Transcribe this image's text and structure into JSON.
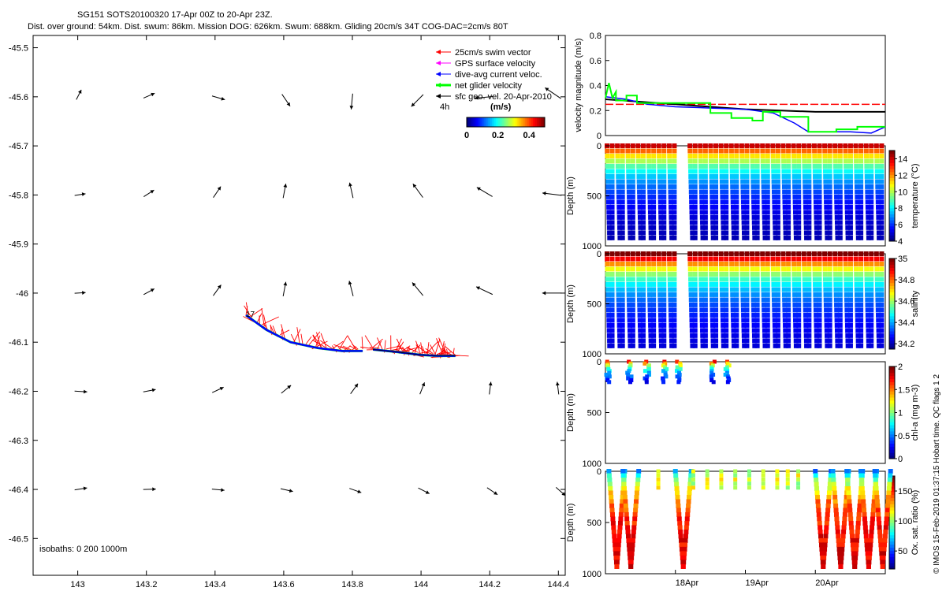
{
  "header": {
    "line1": "SG151 SOTS20100320 17-Apr 00Z to 20-Apr 23Z.",
    "line2": "Dist. over ground: 54km. Dist. swum: 86km. Mission DOG: 626km. Swum: 688km. Gliding 20cm/s 34T COG-DAC=2cm/s 80T"
  },
  "footer_vertical": "© IMOS 15-Feb-2019 01:37:15 Hobart time. QC flags 1  2",
  "map": {
    "isobaths_label": "isobaths: 0    200  1000m",
    "scale_label": "4h",
    "colorbar": {
      "title": "(m/s)",
      "ticks": [
        "0",
        "0.2",
        "0.4"
      ],
      "range": [
        0,
        0.5
      ]
    },
    "legend": [
      {
        "label": "25cm/s swim vector",
        "color": "#ff0000"
      },
      {
        "label": "GPS surface velocity",
        "color": "#ff00ff"
      },
      {
        "label": "dive-avg current veloc.",
        "color": "#0000ff"
      },
      {
        "label": "net glider velocity",
        "color": "#00ff00"
      },
      {
        "label": "sfc geo. vel. 20-Apr-2010",
        "color": "#000000"
      }
    ],
    "annotation": "17"
  },
  "chart_data": [
    {
      "type": "scatter",
      "name": "track map",
      "xlim": [
        142.87,
        144.42
      ],
      "ylim": [
        -46.575,
        -45.475
      ],
      "x_ticks": [
        143,
        143.2,
        143.4,
        143.6,
        143.8,
        144,
        144.2,
        144.4
      ],
      "x_tick_labels": [
        "143",
        "143.2",
        "143.4",
        "143.6",
        "143.8",
        "144",
        "144.2",
        "144.4"
      ],
      "y_ticks": [
        -45.5,
        -45.6,
        -45.7,
        -45.8,
        -45.9,
        -46,
        -46.1,
        -46.2,
        -46.3,
        -46.4,
        -46.5
      ],
      "y_tick_labels": [
        "-45.5",
        "-45.6",
        "-45.7",
        "-45.8",
        "-45.9",
        "-46",
        "-46.1",
        "-46.2",
        "-46.3",
        "-46.4",
        "-46.5"
      ],
      "track_lon": [
        143.49,
        143.55,
        143.62,
        143.7,
        143.77,
        143.83
      ],
      "track_lat": [
        -46.045,
        -46.075,
        -46.1,
        -46.112,
        -46.118,
        -46.118
      ],
      "track2_lon": [
        143.86,
        143.93,
        144.0,
        144.05,
        144.1
      ],
      "track2_lat": [
        -46.115,
        -46.12,
        -46.126,
        -46.128,
        -46.128
      ],
      "geo_vector_lons": [
        143.0,
        143.2,
        143.4,
        143.6,
        143.8,
        144.0,
        144.2,
        144.4
      ],
      "geo_vector_lats": [
        -45.6,
        -45.8,
        -46.0,
        -46.2,
        -46.4
      ]
    },
    {
      "type": "line",
      "name": "velocity",
      "ylabel": "velocity magnitude (m/s)",
      "xlim": [
        17.0,
        21.0
      ],
      "ylim": [
        0,
        0.8
      ],
      "y_ticks": [
        0,
        0.2,
        0.4,
        0.6,
        0.8
      ],
      "y_tick_labels": [
        "0",
        "0.2",
        "0.4",
        "0.6",
        "0.8"
      ],
      "series": [
        {
          "color": "#ff0000",
          "x": [
            17.0,
            21.0
          ],
          "y": [
            0.25,
            0.25
          ]
        },
        {
          "color": "#000000",
          "x": [
            17.0,
            17.5,
            18.0,
            18.5,
            19.0,
            19.5,
            20.0,
            20.5,
            21.0
          ],
          "y": [
            0.29,
            0.27,
            0.25,
            0.23,
            0.21,
            0.2,
            0.19,
            0.19,
            0.19
          ]
        },
        {
          "color": "#0000ff",
          "x": [
            17.0,
            17.3,
            17.6,
            18.0,
            18.5,
            19.0,
            19.4,
            19.7,
            19.9,
            20.2,
            20.5,
            20.8,
            21.0
          ],
          "y": [
            0.31,
            0.29,
            0.25,
            0.23,
            0.22,
            0.21,
            0.18,
            0.1,
            0.03,
            0.03,
            0.03,
            0.02,
            0.07
          ]
        },
        {
          "color": "#00ff00",
          "x": [
            17.0,
            17.05,
            17.1,
            17.15,
            17.15,
            17.3,
            17.3,
            17.45,
            17.45,
            18.5,
            18.5,
            18.8,
            18.8,
            19.1,
            19.1,
            19.25,
            19.25,
            19.5,
            19.5,
            19.9,
            19.9,
            20.3,
            20.3,
            20.6,
            20.6,
            21.0
          ],
          "y": [
            0.3,
            0.42,
            0.3,
            0.35,
            0.28,
            0.28,
            0.32,
            0.32,
            0.26,
            0.26,
            0.18,
            0.18,
            0.14,
            0.14,
            0.12,
            0.12,
            0.19,
            0.19,
            0.15,
            0.15,
            0.03,
            0.03,
            0.05,
            0.05,
            0.07,
            0.07
          ]
        }
      ]
    },
    {
      "type": "heatmap",
      "name": "temperature",
      "ylabel": "Depth (m)",
      "clabel": "temperature (°C)",
      "ylim": [
        0,
        1000
      ],
      "y_tick_labels": [
        "0",
        "500",
        "1000"
      ],
      "clim": [
        4,
        15
      ],
      "c_ticks": [
        "4",
        "6",
        "8",
        "10",
        "12",
        "14"
      ],
      "c_tick_values": [
        4,
        6,
        8,
        10,
        12,
        14
      ],
      "profile_model": "surface-warm",
      "yo_count": 27,
      "dive_depth": 920,
      "gap_days": [
        [
          18.0,
          18.15
        ]
      ]
    },
    {
      "type": "heatmap",
      "name": "salinity",
      "ylabel": "Depth (m)",
      "clabel": "salinity",
      "ylim": [
        0,
        1000
      ],
      "y_tick_labels": [
        "0",
        "500",
        "1000"
      ],
      "clim": [
        34.15,
        35.0
      ],
      "c_ticks": [
        "34.2",
        "34.4",
        "34.6",
        "34.8",
        "35"
      ],
      "c_tick_values": [
        34.2,
        34.4,
        34.6,
        34.8,
        35.0
      ],
      "profile_model": "surface-salty",
      "yo_count": 27,
      "dive_depth": 920,
      "gap_days": [
        [
          18.0,
          18.15
        ]
      ]
    },
    {
      "type": "heatmap",
      "name": "chl-a",
      "ylabel": "Depth (m)",
      "clabel": "chl-a (mg m-3)",
      "ylim": [
        0,
        1000
      ],
      "y_tick_labels": [
        "0",
        "500",
        "1000"
      ],
      "clim": [
        0,
        2
      ],
      "c_ticks": [
        "0",
        "0.5",
        "1",
        "1.5",
        "2"
      ],
      "c_tick_values": [
        0,
        0.5,
        1,
        1.5,
        2
      ],
      "casts_days": [
        17.05,
        17.35,
        17.6,
        17.85,
        18.05,
        18.55,
        18.75
      ],
      "cast_depth": 200
    },
    {
      "type": "heatmap",
      "name": "oxygen",
      "ylabel": "Depth (m)",
      "clabel": "Ox. sat. ratio (%)",
      "ylim": [
        0,
        1000
      ],
      "y_tick_labels": [
        "0",
        "500",
        "1000"
      ],
      "x_tick_labels": [
        "18Apr",
        "19Apr",
        "20Apr"
      ],
      "x_tick_values": [
        18.0,
        19.0,
        20.0
      ],
      "clim": [
        20,
        175
      ],
      "c_ticks": [
        "50",
        "100",
        "150"
      ],
      "c_tick_values": [
        50,
        100,
        150
      ],
      "deep_dive_days": [
        17.05,
        17.25,
        18.0,
        20.0,
        20.25,
        20.45,
        20.65,
        20.85
      ],
      "shallow_cast_days": [
        17.75,
        18.25,
        18.45,
        18.65,
        18.85,
        19.05,
        19.25,
        19.45,
        19.6,
        19.75
      ]
    }
  ]
}
